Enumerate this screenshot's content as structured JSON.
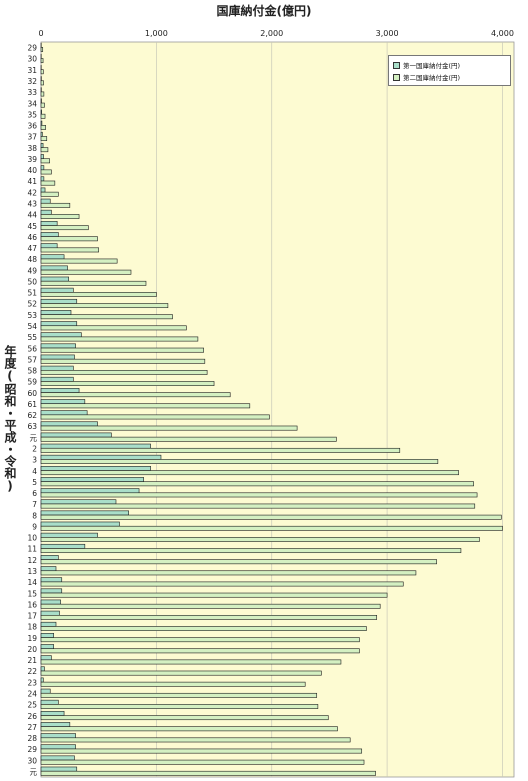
{
  "chart_data": {
    "type": "bar",
    "orientation": "horizontal",
    "title": "国庫納付金(億円)",
    "ylabel": "年度(昭和・平成・令和)",
    "xlim": [
      0,
      4100
    ],
    "xticks": [
      0,
      1000,
      2000,
      3000,
      4000
    ],
    "xtick_labels": [
      "0",
      "1,000",
      "2,000",
      "3,000",
      "4,000"
    ],
    "grid": true,
    "legend_position": "top-right",
    "categories": [
      "29",
      "30",
      "31",
      "32",
      "33",
      "34",
      "35",
      "36",
      "37",
      "38",
      "39",
      "40",
      "41",
      "42",
      "43",
      "44",
      "45",
      "46",
      "47",
      "48",
      "49",
      "50",
      "51",
      "52",
      "53",
      "54",
      "55",
      "56",
      "57",
      "58",
      "59",
      "60",
      "61",
      "62",
      "63",
      "元",
      "2",
      "3",
      "4",
      "5",
      "6",
      "7",
      "8",
      "9",
      "10",
      "11",
      "12",
      "13",
      "14",
      "15",
      "16",
      "17",
      "18",
      "19",
      "20",
      "21",
      "22",
      "23",
      "24",
      "25",
      "26",
      "27",
      "28",
      "29",
      "30",
      "元"
    ],
    "series": [
      {
        "name": "第一国庫納付金(円)",
        "color": "#a9dec9",
        "values": [
          2,
          2,
          2,
          3,
          3,
          4,
          6,
          8,
          12,
          18,
          22,
          25,
          25,
          35,
          80,
          90,
          140,
          150,
          140,
          200,
          230,
          240,
          280,
          310,
          260,
          310,
          350,
          300,
          290,
          280,
          280,
          330,
          380,
          400,
          490,
          610,
          950,
          1040,
          950,
          890,
          850,
          650,
          760,
          680,
          490,
          380,
          150,
          130,
          180,
          180,
          170,
          160,
          130,
          110,
          110,
          90,
          30,
          20,
          80,
          150,
          200,
          250,
          300,
          300,
          290,
          310
        ]
      },
      {
        "name": "第二国庫納付金(円)",
        "color": "#d4f0c2",
        "values": [
          15,
          18,
          20,
          22,
          25,
          30,
          35,
          40,
          50,
          60,
          75,
          90,
          120,
          150,
          250,
          330,
          410,
          490,
          500,
          660,
          780,
          910,
          1000,
          1100,
          1140,
          1260,
          1360,
          1410,
          1420,
          1440,
          1500,
          1640,
          1810,
          1980,
          2220,
          2560,
          3110,
          3440,
          3620,
          3750,
          3780,
          3760,
          3990,
          4000,
          3800,
          3640,
          3430,
          3250,
          3140,
          3000,
          2940,
          2910,
          2820,
          2760,
          2760,
          2600,
          2430,
          2290,
          2390,
          2400,
          2490,
          2570,
          2680,
          2780,
          2800,
          2900
        ]
      }
    ]
  }
}
